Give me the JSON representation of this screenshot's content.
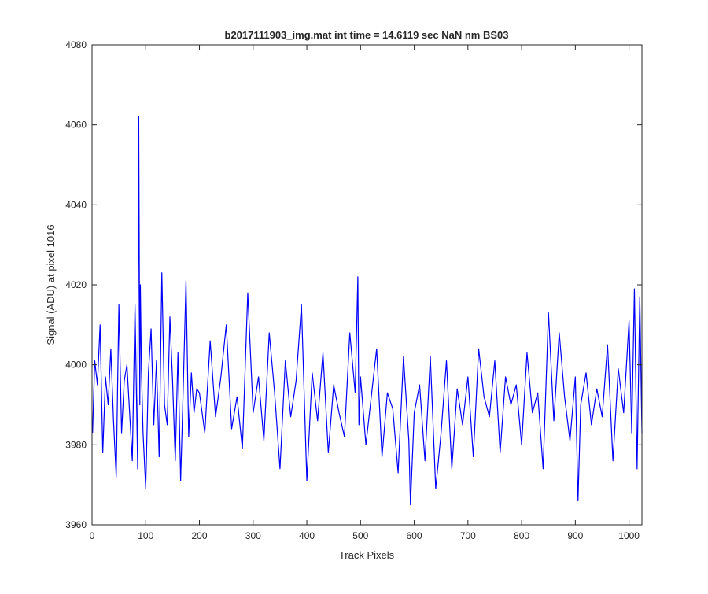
{
  "chart_data": {
    "type": "line",
    "title": "b2017111903_img.mat int time = 14.6119 sec  NaN nm BS03",
    "xlabel": "Track Pixels",
    "ylabel": "Signal (ADU) at pixel 1016",
    "xlim": [
      0,
      1024
    ],
    "ylim": [
      3960,
      4080
    ],
    "xticks": [
      0,
      100,
      200,
      300,
      400,
      500,
      600,
      700,
      800,
      900,
      1000
    ],
    "yticks": [
      3960,
      3980,
      4000,
      4020,
      4040,
      4060,
      4080
    ],
    "grid": false,
    "legend": "none",
    "line_color": "#0000ff",
    "series": [
      {
        "x": [
          1,
          5,
          10,
          15,
          20,
          25,
          30,
          35,
          40,
          45,
          50,
          55,
          60,
          65,
          70,
          75,
          80,
          85,
          87,
          89,
          90,
          92,
          95,
          100,
          105,
          110,
          115,
          120,
          125,
          130,
          135,
          140,
          145,
          150,
          155,
          160,
          165,
          170,
          175,
          180,
          185,
          190,
          195,
          200,
          210,
          220,
          230,
          240,
          250,
          260,
          270,
          280,
          290,
          300,
          310,
          320,
          330,
          340,
          350,
          360,
          370,
          380,
          390,
          400,
          410,
          420,
          430,
          440,
          450,
          460,
          470,
          480,
          490,
          495,
          497,
          500,
          510,
          520,
          530,
          540,
          550,
          560,
          570,
          580,
          590,
          593,
          600,
          610,
          620,
          630,
          640,
          650,
          660,
          670,
          680,
          690,
          700,
          710,
          720,
          730,
          740,
          750,
          760,
          770,
          780,
          790,
          800,
          810,
          820,
          830,
          840,
          850,
          860,
          870,
          880,
          890,
          900,
          905,
          910,
          920,
          930,
          940,
          950,
          960,
          970,
          980,
          990,
          1000,
          1005,
          1010,
          1015,
          1020,
          1024
        ],
        "y": [
          3983,
          4001,
          3995,
          4010,
          3978,
          3997,
          3990,
          4004,
          3986,
          3972,
          4015,
          3983,
          3996,
          4000,
          3988,
          3976,
          4015,
          3974,
          4062,
          3990,
          4020,
          3999,
          3983,
          3969,
          3998,
          4009,
          3985,
          4001,
          3977,
          4023,
          3990,
          3985,
          4012,
          3996,
          3976,
          4003,
          3971,
          3995,
          4021,
          3982,
          3998,
          3988,
          3994,
          3993,
          3983,
          4006,
          3987,
          3997,
          4010,
          3984,
          3992,
          3979,
          4018,
          3988,
          3997,
          3981,
          4008,
          3993,
          3974,
          4001,
          3987,
          3996,
          4015,
          3971,
          3998,
          3986,
          4003,
          3978,
          3995,
          3988,
          3982,
          4008,
          3993,
          4022,
          3985,
          3997,
          3980,
          3992,
          4004,
          3977,
          3993,
          3989,
          3973,
          4002,
          3981,
          3965,
          3988,
          3995,
          3976,
          4002,
          3969,
          3983,
          4001,
          3974,
          3994,
          3985,
          3997,
          3977,
          4004,
          3992,
          3987,
          4001,
          3978,
          3997,
          3990,
          3995,
          3980,
          4003,
          3988,
          3993,
          3974,
          4013,
          3986,
          4008,
          3992,
          3981,
          3997,
          3966,
          3990,
          3998,
          3985,
          3994,
          3987,
          4005,
          3976,
          3999,
          3988,
          4011,
          3983,
          4019,
          3974,
          4017,
          3983
        ]
      }
    ]
  }
}
